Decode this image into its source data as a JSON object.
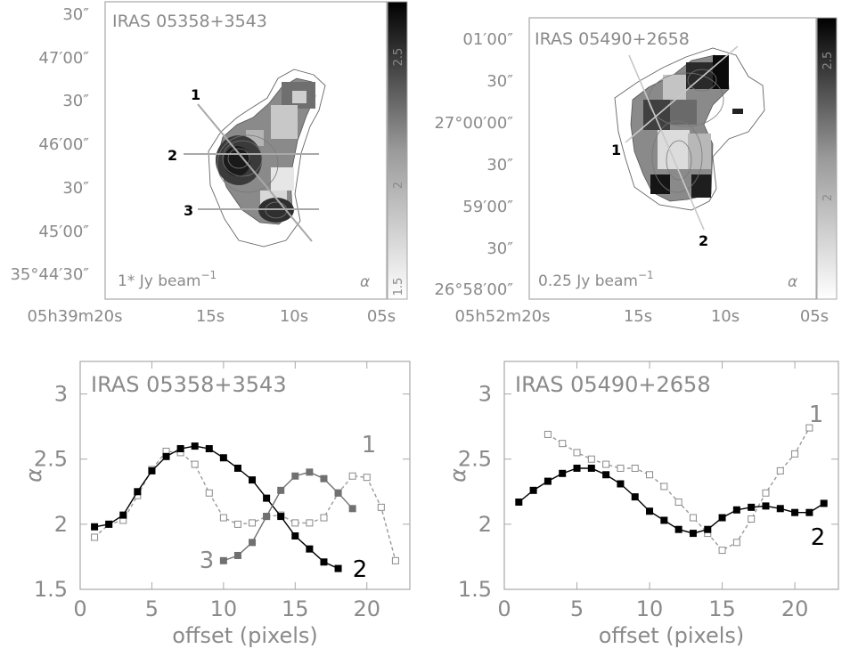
{
  "maps": [
    {
      "title": "IRAS 05358+3543",
      "beam_label": "1* Jy beam",
      "beam_exp": "−1",
      "alpha_symbol": "α",
      "ra_ticks": [
        "05h39m20s",
        "15s",
        "10s",
        "05s"
      ],
      "dec_ticks": [
        "30″",
        "47′00″",
        "30″",
        "46′00″",
        "30″",
        "45′00″",
        "35°44′30″"
      ],
      "colorbar_ticks": [
        "2.5",
        "2",
        "1.5"
      ],
      "cut_labels": [
        "1",
        "2",
        "3"
      ]
    },
    {
      "title": "IRAS 05490+2658",
      "beam_label": "0.25 Jy beam",
      "beam_exp": "−1",
      "alpha_symbol": "α",
      "ra_ticks": [
        "05h52m20s",
        "15s",
        "10s",
        "05s"
      ],
      "dec_ticks": [
        "01′00″",
        "30″",
        "27°00′00″",
        "30″",
        "59′00″",
        "30″",
        "26°58′00″"
      ],
      "colorbar_ticks": [
        "2.5",
        "2"
      ],
      "cut_labels": [
        "1",
        "2"
      ]
    }
  ],
  "chart_data": [
    {
      "type": "line",
      "title": "IRAS 05358+3543",
      "xlabel": "offset (pixels)",
      "ylabel": "α",
      "xlim": [
        0,
        23
      ],
      "ylim": [
        1.5,
        3.25
      ],
      "x_ticks": [
        "0",
        "5",
        "10",
        "15",
        "20"
      ],
      "y_ticks": [
        "1.5",
        "2",
        "2.5",
        "3"
      ],
      "series": [
        {
          "name": "1",
          "marker": "open-square",
          "line": "dashed",
          "color": "#8a8a8a",
          "x": [
            1,
            2,
            3,
            4,
            5,
            6,
            7,
            8,
            9,
            10,
            11,
            12,
            13,
            14,
            15,
            16,
            17,
            18,
            19,
            20,
            21,
            22
          ],
          "y": [
            1.9,
            2.0,
            2.03,
            2.22,
            2.42,
            2.56,
            2.55,
            2.46,
            2.24,
            2.05,
            2.0,
            2.01,
            2.06,
            2.07,
            2.01,
            2.01,
            2.05,
            2.24,
            2.37,
            2.36,
            2.13,
            1.72
          ]
        },
        {
          "name": "2",
          "marker": "filled-square",
          "line": "solid",
          "color": "#000000",
          "x": [
            1,
            2,
            3,
            4,
            5,
            6,
            7,
            8,
            9,
            10,
            11,
            12,
            13,
            14,
            15,
            16,
            17,
            18
          ],
          "y": [
            1.98,
            2.0,
            2.07,
            2.25,
            2.41,
            2.52,
            2.58,
            2.6,
            2.58,
            2.51,
            2.43,
            2.34,
            2.2,
            2.06,
            1.91,
            1.81,
            1.71,
            1.66
          ]
        },
        {
          "name": "3",
          "marker": "filled-square",
          "line": "solid",
          "color": "#707070",
          "x": [
            10,
            11,
            12,
            13,
            14,
            15,
            16,
            17,
            18,
            19
          ],
          "y": [
            1.72,
            1.76,
            1.86,
            2.06,
            2.26,
            2.37,
            2.4,
            2.35,
            2.24,
            2.12
          ]
        }
      ],
      "series_labels": [
        "1",
        "2",
        "3"
      ]
    },
    {
      "type": "line",
      "title": "IRAS 05490+2658",
      "xlabel": "offset (pixels)",
      "ylabel": "α",
      "xlim": [
        0,
        23
      ],
      "ylim": [
        1.5,
        3.25
      ],
      "x_ticks": [
        "0",
        "5",
        "10",
        "15",
        "20"
      ],
      "y_ticks": [
        "1.5",
        "2",
        "2.5",
        "3"
      ],
      "series": [
        {
          "name": "1",
          "marker": "open-square",
          "line": "dashed",
          "color": "#8a8a8a",
          "x": [
            3,
            4,
            5,
            6,
            7,
            8,
            9,
            10,
            11,
            12,
            13,
            14,
            15,
            16,
            17,
            18,
            19,
            20,
            21
          ],
          "y": [
            2.69,
            2.62,
            2.55,
            2.5,
            2.46,
            2.43,
            2.43,
            2.38,
            2.29,
            2.17,
            2.05,
            1.93,
            1.8,
            1.86,
            2.04,
            2.24,
            2.41,
            2.54,
            2.74
          ]
        },
        {
          "name": "2",
          "marker": "filled-square",
          "line": "solid",
          "color": "#000000",
          "x": [
            1,
            2,
            3,
            4,
            5,
            6,
            7,
            8,
            9,
            10,
            11,
            12,
            13,
            14,
            15,
            16,
            17,
            18,
            19,
            20,
            21,
            22
          ],
          "y": [
            2.17,
            2.26,
            2.33,
            2.39,
            2.43,
            2.43,
            2.38,
            2.31,
            2.21,
            2.1,
            2.03,
            1.96,
            1.93,
            1.96,
            2.05,
            2.11,
            2.13,
            2.14,
            2.12,
            2.09,
            2.09,
            2.16
          ]
        }
      ],
      "series_labels": [
        "1",
        "2"
      ]
    }
  ]
}
